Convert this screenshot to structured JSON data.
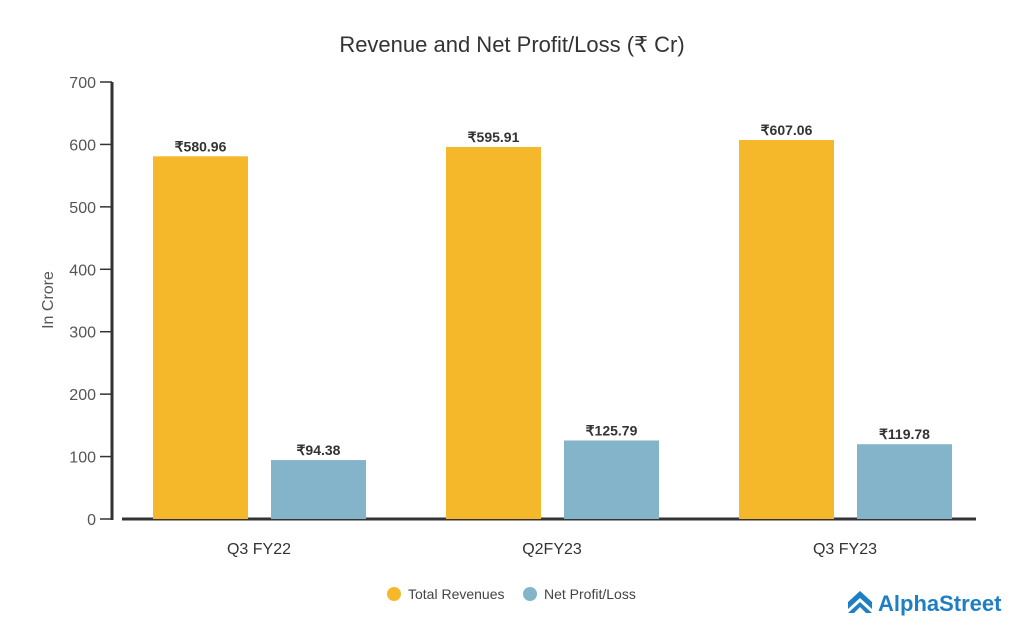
{
  "chart_data": {
    "type": "bar",
    "title": "Revenue and Net Profit/Loss (₹ Cr)",
    "xlabel": "",
    "ylabel": "In Crore",
    "ylim": [
      0,
      700
    ],
    "yticks": [
      0,
      100,
      200,
      300,
      400,
      500,
      600,
      700
    ],
    "categories": [
      "Q3 FY22",
      "Q2FY23",
      "Q3 FY23"
    ],
    "series": [
      {
        "name": "Total Revenues",
        "color": "#f5b82a",
        "values": [
          580.96,
          595.91,
          607.06
        ],
        "labels": [
          "₹580.96",
          "₹595.91",
          "₹607.06"
        ]
      },
      {
        "name": "Net Profit/Loss",
        "color": "#83b4c9",
        "values": [
          94.38,
          125.79,
          119.78
        ],
        "labels": [
          "₹94.38",
          "₹125.79",
          "₹119.78"
        ]
      }
    ],
    "legend_position": "bottom-center",
    "grid": false
  },
  "brand": {
    "name": "AlphaStreet",
    "color": "#1f7fc4"
  }
}
